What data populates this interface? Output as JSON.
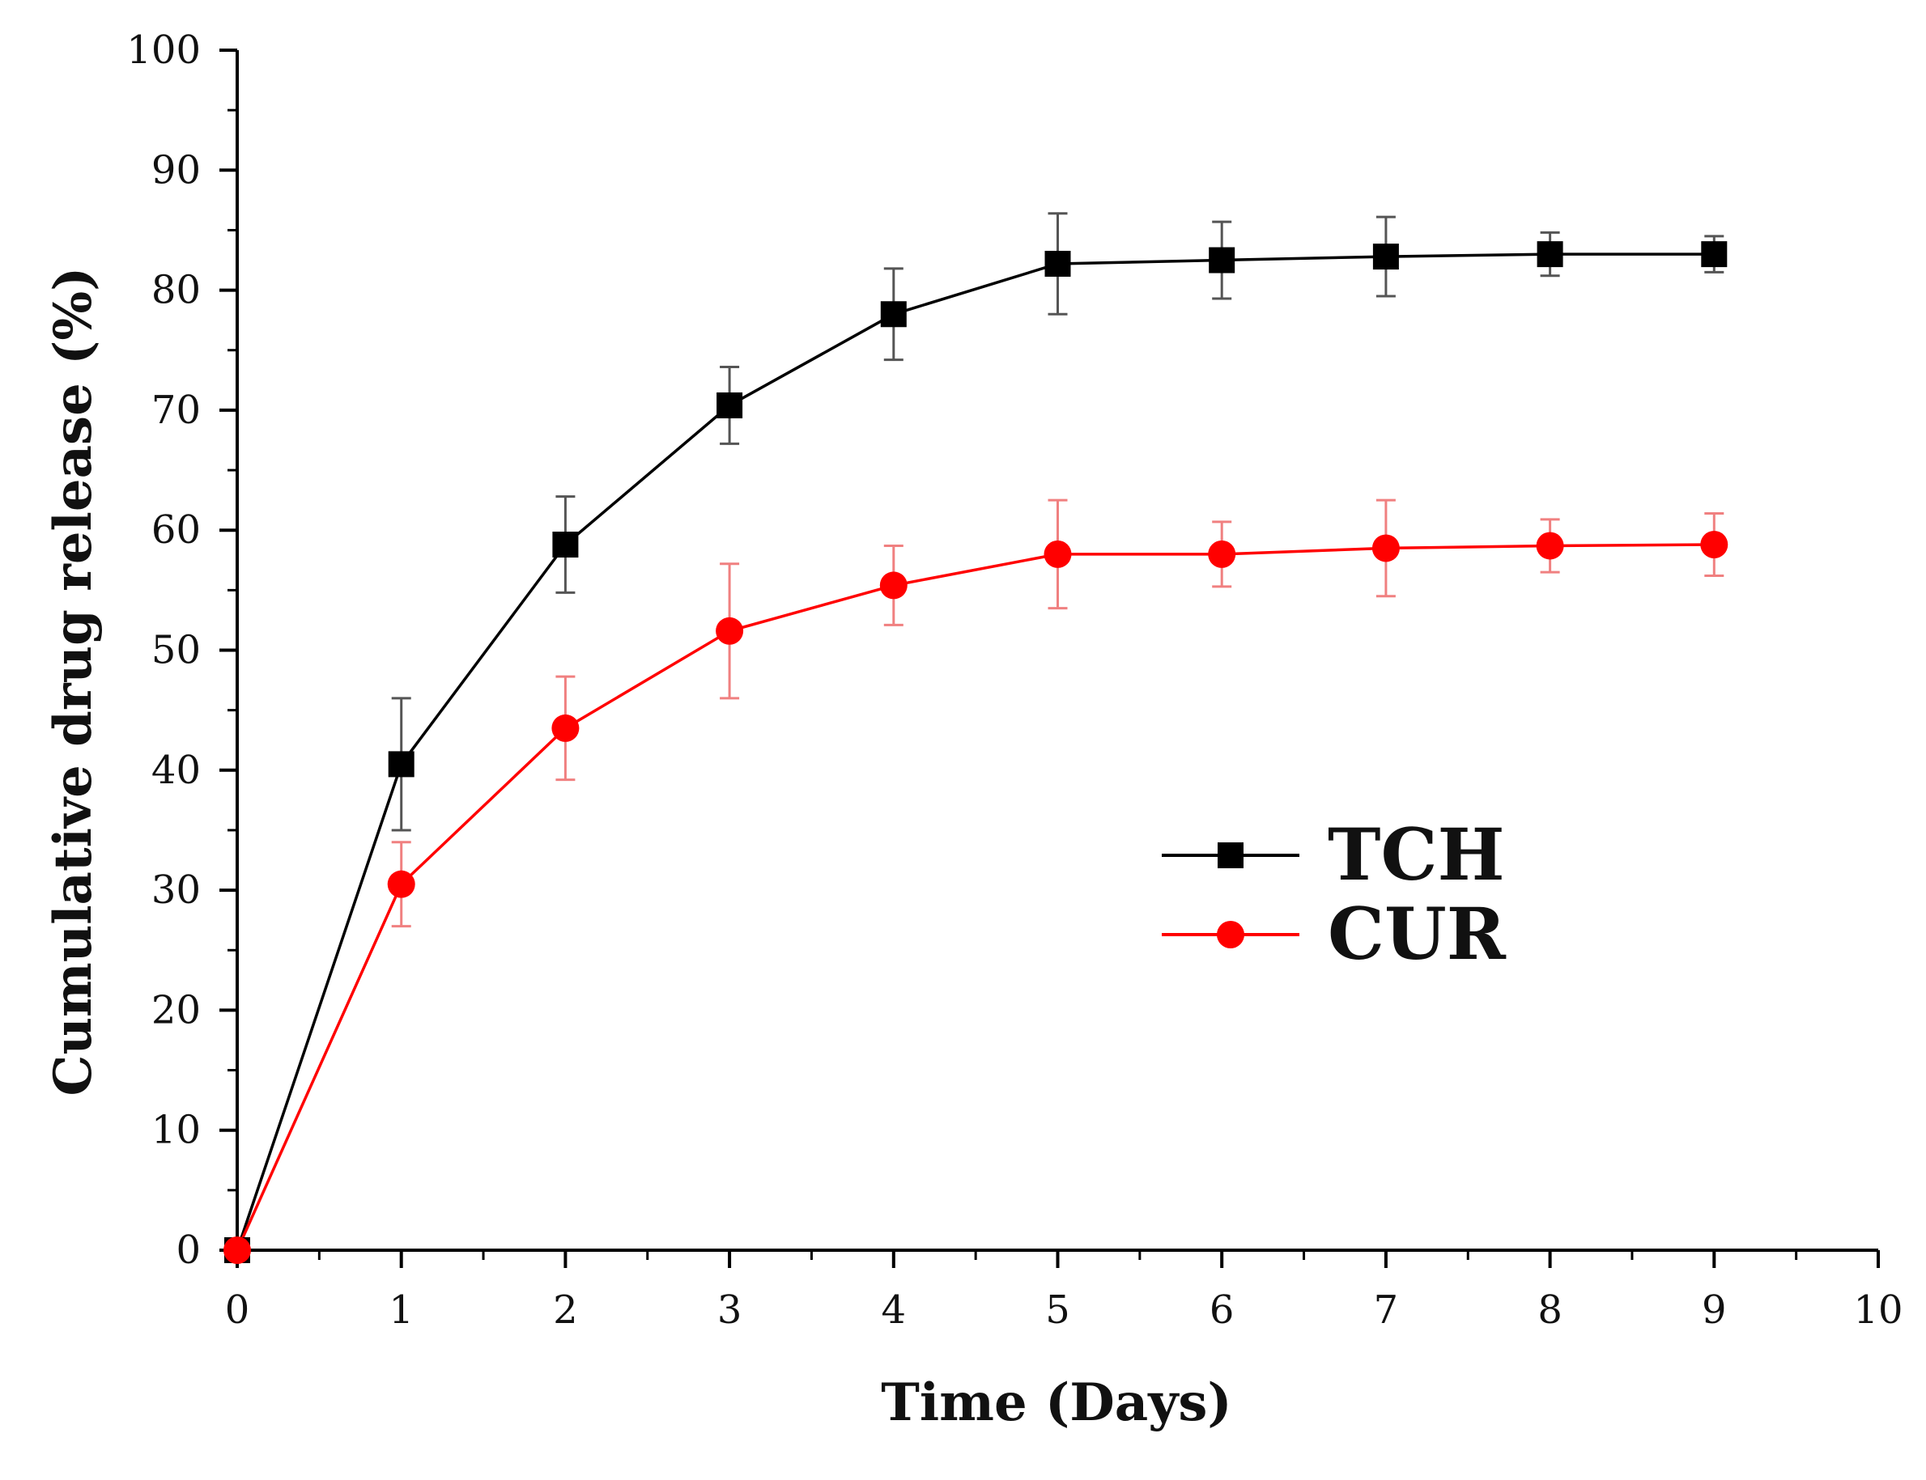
{
  "chart_data": {
    "type": "line",
    "title": "",
    "xlabel": "Time (Days)",
    "ylabel": "Cumulative drug release (%)",
    "xlim": [
      0,
      10
    ],
    "ylim": [
      0,
      100
    ],
    "x_ticks": [
      0,
      1,
      2,
      3,
      4,
      5,
      6,
      7,
      8,
      9,
      10
    ],
    "y_ticks": [
      0,
      10,
      20,
      30,
      40,
      50,
      60,
      70,
      80,
      90,
      100
    ],
    "grid": false,
    "legend_position": "center-right",
    "series": [
      {
        "name": "TCH",
        "color": "#000000",
        "errorbar_color": "#555555",
        "marker": "square",
        "x": [
          0,
          1,
          2,
          3,
          4,
          5,
          6,
          7,
          8,
          9
        ],
        "y": [
          0,
          40.5,
          58.8,
          70.4,
          78.0,
          82.2,
          82.5,
          82.8,
          83.0,
          83.0
        ],
        "error": [
          0,
          5.5,
          4.0,
          3.2,
          3.8,
          4.2,
          3.2,
          3.3,
          1.8,
          1.5
        ]
      },
      {
        "name": "CUR",
        "color": "#ff0000",
        "errorbar_color": "#f08080",
        "marker": "circle",
        "x": [
          0,
          1,
          2,
          3,
          4,
          5,
          6,
          7,
          8,
          9
        ],
        "y": [
          0,
          30.5,
          43.5,
          51.6,
          55.4,
          58.0,
          58.0,
          58.5,
          58.7,
          58.8
        ],
        "error": [
          0,
          3.5,
          4.3,
          5.6,
          3.3,
          4.5,
          2.7,
          4.0,
          2.2,
          2.6
        ]
      }
    ]
  }
}
